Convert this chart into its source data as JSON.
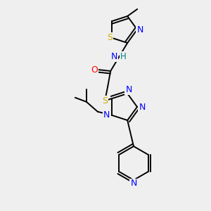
{
  "bg_color": "#efefef",
  "atom_colors": {
    "C": "#000000",
    "N": "#0000ff",
    "O": "#ff0000",
    "S": "#ccaa00",
    "H": "#008080"
  },
  "bond_color": "#000000",
  "figsize": [
    3.0,
    3.0
  ],
  "dpi": 100
}
